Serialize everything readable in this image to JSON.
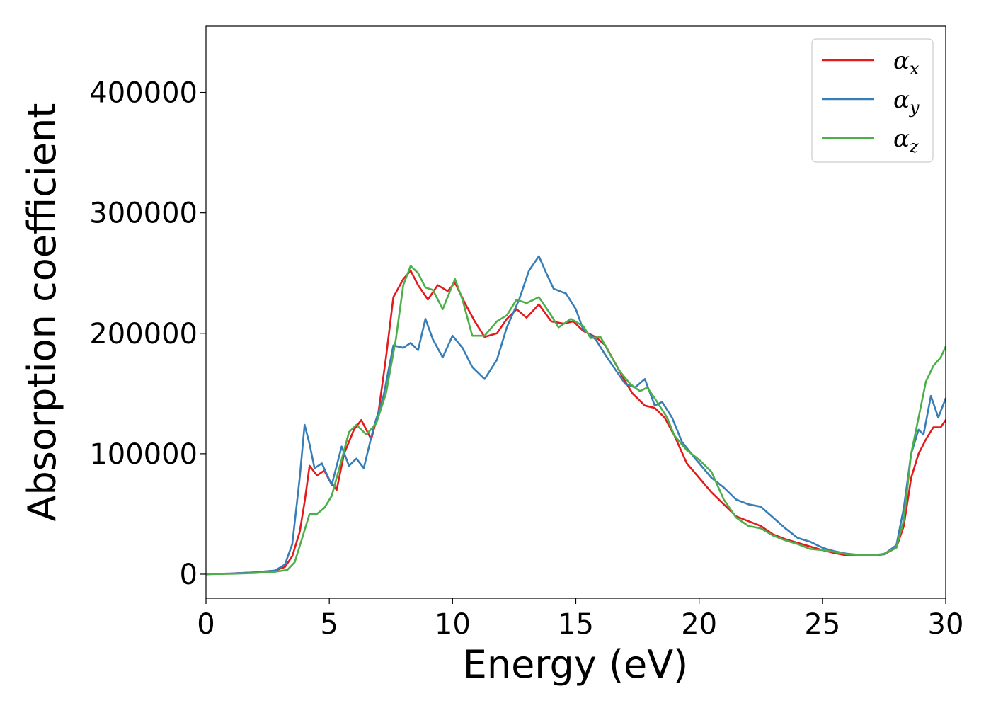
{
  "chart_data": {
    "type": "line",
    "title": "",
    "xlabel": "Energy (eV)",
    "ylabel": "Absorption coefficient",
    "xlim": [
      0,
      30
    ],
    "ylim": [
      -20000,
      455000
    ],
    "xticks": [
      0,
      5,
      10,
      15,
      20,
      25,
      30
    ],
    "xtick_labels": [
      "0",
      "5",
      "10",
      "15",
      "20",
      "25",
      "30"
    ],
    "yticks": [
      0,
      100000,
      200000,
      300000,
      400000
    ],
    "ytick_labels": [
      "0",
      "100000",
      "200000",
      "300000",
      "400000"
    ],
    "grid": false,
    "legend_position": "top-right",
    "series": [
      {
        "name": "α",
        "subscript": "x",
        "color": "#e41a1c",
        "points": [
          [
            0,
            0
          ],
          [
            1,
            500
          ],
          [
            2,
            1500
          ],
          [
            2.8,
            3000
          ],
          [
            3.2,
            6000
          ],
          [
            3.5,
            15000
          ],
          [
            3.8,
            35000
          ],
          [
            4.0,
            60000
          ],
          [
            4.2,
            90000
          ],
          [
            4.5,
            82000
          ],
          [
            4.8,
            86000
          ],
          [
            5.0,
            78000
          ],
          [
            5.3,
            70000
          ],
          [
            5.6,
            100000
          ],
          [
            6.0,
            120000
          ],
          [
            6.3,
            128000
          ],
          [
            6.7,
            112000
          ],
          [
            7.0,
            135000
          ],
          [
            7.3,
            180000
          ],
          [
            7.6,
            230000
          ],
          [
            8.0,
            245000
          ],
          [
            8.3,
            252000
          ],
          [
            8.6,
            240000
          ],
          [
            9.0,
            228000
          ],
          [
            9.4,
            240000
          ],
          [
            9.8,
            235000
          ],
          [
            10.1,
            242000
          ],
          [
            10.5,
            225000
          ],
          [
            10.9,
            210000
          ],
          [
            11.3,
            197000
          ],
          [
            11.8,
            200000
          ],
          [
            12.2,
            212000
          ],
          [
            12.6,
            220000
          ],
          [
            13.0,
            213000
          ],
          [
            13.5,
            224000
          ],
          [
            14.0,
            210000
          ],
          [
            14.5,
            208000
          ],
          [
            14.9,
            210000
          ],
          [
            15.3,
            202000
          ],
          [
            15.8,
            197000
          ],
          [
            16.2,
            190000
          ],
          [
            16.6,
            175000
          ],
          [
            17.0,
            160000
          ],
          [
            17.3,
            150000
          ],
          [
            17.8,
            140000
          ],
          [
            18.2,
            138000
          ],
          [
            18.6,
            130000
          ],
          [
            19.0,
            115000
          ],
          [
            19.5,
            92000
          ],
          [
            20.0,
            80000
          ],
          [
            20.5,
            68000
          ],
          [
            21.0,
            58000
          ],
          [
            21.5,
            48000
          ],
          [
            22.0,
            44000
          ],
          [
            22.5,
            40000
          ],
          [
            23.0,
            33000
          ],
          [
            23.5,
            29000
          ],
          [
            24.0,
            26000
          ],
          [
            24.5,
            23000
          ],
          [
            25.0,
            20000
          ],
          [
            25.5,
            17500
          ],
          [
            26.0,
            15500
          ],
          [
            26.5,
            15500
          ],
          [
            27.0,
            15500
          ],
          [
            27.5,
            16500
          ],
          [
            28.0,
            22000
          ],
          [
            28.3,
            40000
          ],
          [
            28.6,
            80000
          ],
          [
            28.9,
            100000
          ],
          [
            29.2,
            112000
          ],
          [
            29.5,
            122000
          ],
          [
            29.8,
            122000
          ],
          [
            30.0,
            128000
          ]
        ]
      },
      {
        "name": "α",
        "subscript": "y",
        "color": "#377eb8",
        "points": [
          [
            0,
            0
          ],
          [
            1,
            500
          ],
          [
            2,
            1500
          ],
          [
            2.8,
            3000
          ],
          [
            3.2,
            8000
          ],
          [
            3.5,
            25000
          ],
          [
            3.8,
            80000
          ],
          [
            4.0,
            124000
          ],
          [
            4.2,
            108000
          ],
          [
            4.4,
            88000
          ],
          [
            4.7,
            92000
          ],
          [
            5.1,
            74000
          ],
          [
            5.5,
            106000
          ],
          [
            5.8,
            90000
          ],
          [
            6.1,
            96000
          ],
          [
            6.4,
            88000
          ],
          [
            6.8,
            122000
          ],
          [
            7.2,
            148000
          ],
          [
            7.6,
            190000
          ],
          [
            8.0,
            188000
          ],
          [
            8.3,
            192000
          ],
          [
            8.6,
            186000
          ],
          [
            8.9,
            212000
          ],
          [
            9.2,
            195000
          ],
          [
            9.6,
            180000
          ],
          [
            10.0,
            198000
          ],
          [
            10.4,
            188000
          ],
          [
            10.8,
            172000
          ],
          [
            11.3,
            162000
          ],
          [
            11.8,
            178000
          ],
          [
            12.2,
            205000
          ],
          [
            12.7,
            228000
          ],
          [
            13.1,
            252000
          ],
          [
            13.5,
            264000
          ],
          [
            13.8,
            250000
          ],
          [
            14.1,
            237000
          ],
          [
            14.6,
            233000
          ],
          [
            15.0,
            220000
          ],
          [
            15.3,
            203000
          ],
          [
            15.8,
            195000
          ],
          [
            16.2,
            182000
          ],
          [
            16.6,
            170000
          ],
          [
            17.0,
            158000
          ],
          [
            17.4,
            155000
          ],
          [
            17.8,
            162000
          ],
          [
            18.2,
            140000
          ],
          [
            18.5,
            143000
          ],
          [
            18.9,
            130000
          ],
          [
            19.3,
            110000
          ],
          [
            19.8,
            97000
          ],
          [
            20.5,
            80000
          ],
          [
            21.0,
            72000
          ],
          [
            21.5,
            62000
          ],
          [
            22.0,
            58000
          ],
          [
            22.5,
            56000
          ],
          [
            23.0,
            47000
          ],
          [
            23.5,
            38000
          ],
          [
            24.0,
            30000
          ],
          [
            24.5,
            27000
          ],
          [
            25.0,
            22000
          ],
          [
            25.5,
            19000
          ],
          [
            26.0,
            17000
          ],
          [
            26.5,
            16000
          ],
          [
            27.0,
            15500
          ],
          [
            27.5,
            16500
          ],
          [
            28.0,
            24000
          ],
          [
            28.3,
            55000
          ],
          [
            28.6,
            100000
          ],
          [
            28.9,
            120000
          ],
          [
            29.1,
            116000
          ],
          [
            29.4,
            148000
          ],
          [
            29.7,
            130000
          ],
          [
            30.0,
            146000
          ]
        ]
      },
      {
        "name": "α",
        "subscript": "z",
        "color": "#4daf4a",
        "points": [
          [
            0,
            0
          ],
          [
            1,
            300
          ],
          [
            2,
            1000
          ],
          [
            2.8,
            2000
          ],
          [
            3.3,
            3500
          ],
          [
            3.6,
            10000
          ],
          [
            3.9,
            30000
          ],
          [
            4.2,
            50000
          ],
          [
            4.5,
            50000
          ],
          [
            4.8,
            55000
          ],
          [
            5.1,
            65000
          ],
          [
            5.5,
            95000
          ],
          [
            5.8,
            118000
          ],
          [
            6.1,
            124000
          ],
          [
            6.5,
            116000
          ],
          [
            6.9,
            125000
          ],
          [
            7.3,
            150000
          ],
          [
            7.7,
            195000
          ],
          [
            8.0,
            240000
          ],
          [
            8.3,
            256000
          ],
          [
            8.6,
            250000
          ],
          [
            8.9,
            238000
          ],
          [
            9.2,
            236000
          ],
          [
            9.6,
            220000
          ],
          [
            10.1,
            245000
          ],
          [
            10.4,
            228000
          ],
          [
            10.8,
            198000
          ],
          [
            11.3,
            198000
          ],
          [
            11.8,
            210000
          ],
          [
            12.2,
            215000
          ],
          [
            12.6,
            228000
          ],
          [
            13.0,
            225000
          ],
          [
            13.5,
            230000
          ],
          [
            13.9,
            218000
          ],
          [
            14.3,
            205000
          ],
          [
            14.8,
            212000
          ],
          [
            15.3,
            206000
          ],
          [
            15.6,
            196000
          ],
          [
            16.0,
            197000
          ],
          [
            16.4,
            182000
          ],
          [
            16.8,
            168000
          ],
          [
            17.2,
            158000
          ],
          [
            17.6,
            152000
          ],
          [
            17.9,
            155000
          ],
          [
            18.3,
            143000
          ],
          [
            18.7,
            130000
          ],
          [
            19.0,
            115000
          ],
          [
            19.5,
            103000
          ],
          [
            20.0,
            95000
          ],
          [
            20.5,
            85000
          ],
          [
            21.0,
            62000
          ],
          [
            21.5,
            47000
          ],
          [
            22.0,
            40000
          ],
          [
            22.5,
            38000
          ],
          [
            23.0,
            32000
          ],
          [
            23.5,
            28000
          ],
          [
            24.0,
            25000
          ],
          [
            24.5,
            21000
          ],
          [
            25.0,
            20000
          ],
          [
            25.5,
            18500
          ],
          [
            26.0,
            16500
          ],
          [
            26.5,
            16000
          ],
          [
            27.0,
            15500
          ],
          [
            27.5,
            17000
          ],
          [
            28.0,
            22000
          ],
          [
            28.3,
            45000
          ],
          [
            28.6,
            100000
          ],
          [
            28.9,
            130000
          ],
          [
            29.2,
            160000
          ],
          [
            29.5,
            173000
          ],
          [
            29.8,
            180000
          ],
          [
            30.0,
            189000
          ]
        ]
      }
    ]
  }
}
